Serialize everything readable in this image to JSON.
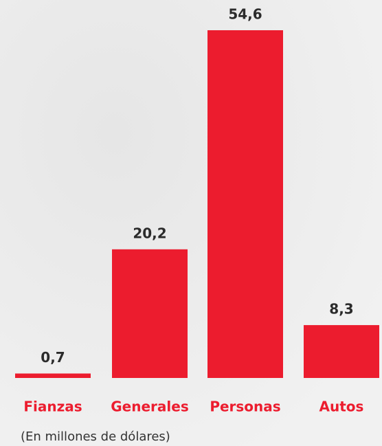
{
  "chart_data": {
    "type": "bar",
    "categories": [
      "Fianzas",
      "Generales",
      "Personas",
      "Autos"
    ],
    "values": [
      0.7,
      20.2,
      54.6,
      8.3
    ],
    "value_labels": [
      "0,7",
      "20,2",
      "54,6",
      "8,3"
    ],
    "color": "#ec1c2e",
    "note": "(En millones de dólares)"
  }
}
